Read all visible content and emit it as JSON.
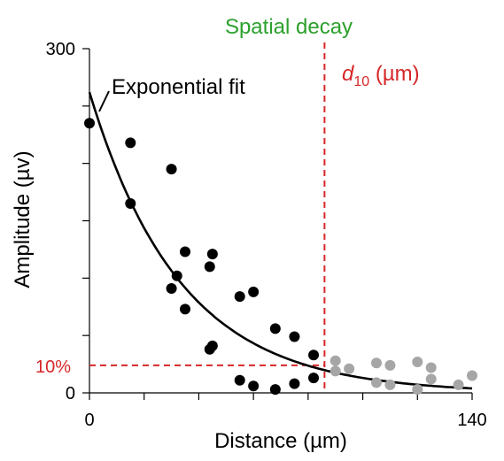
{
  "chart_data": {
    "type": "scatter",
    "title": "Spatial decay",
    "xlabel": "Distance (µm)",
    "ylabel": "Amplitude (µv)",
    "xlim": [
      0,
      140
    ],
    "ylim": [
      0,
      300
    ],
    "x_ticks": [
      0,
      20,
      40,
      60,
      80,
      100,
      120,
      140
    ],
    "x_tick_labels": [
      "0",
      "",
      "",
      "",
      "",
      "",
      "",
      "140"
    ],
    "y_ticks": [
      0,
      50,
      100,
      150,
      200,
      250,
      300
    ],
    "y_tick_labels": [
      "0",
      "",
      "",
      "",
      "",
      "",
      "300"
    ],
    "grid": false,
    "colors": {
      "title": "#2ca02c",
      "threshold": "#d62728",
      "fit": "#000000",
      "points_before": "#000000",
      "points_after": "#a6a6a6"
    },
    "fit": {
      "label": "Exponential fit",
      "model": "exponential",
      "amplitude0": 262,
      "length_constant": 33.3
    },
    "threshold": {
      "label": "10%",
      "value": 24,
      "d10_symbol": "d",
      "d10_subscript": "10",
      "d10_unit": " (µm)",
      "d10_x": 86
    },
    "series": [
      {
        "points": [
          [
            0,
            235
          ],
          [
            15,
            218
          ],
          [
            15,
            165
          ],
          [
            30,
            195
          ],
          [
            30,
            91
          ],
          [
            32,
            102
          ],
          [
            35,
            73
          ],
          [
            35,
            123
          ],
          [
            44,
            110
          ],
          [
            45,
            121
          ],
          [
            44,
            38
          ],
          [
            45,
            41
          ],
          [
            55,
            84
          ],
          [
            60,
            88
          ],
          [
            55,
            11
          ],
          [
            60,
            6
          ],
          [
            68,
            3
          ],
          [
            68,
            56
          ],
          [
            75,
            49
          ],
          [
            75,
            8
          ],
          [
            82,
            33
          ],
          [
            82,
            13
          ]
        ]
      },
      {
        "points": [
          [
            90,
            28
          ],
          [
            90,
            19
          ],
          [
            95,
            21
          ],
          [
            105,
            26
          ],
          [
            110,
            24
          ],
          [
            105,
            9
          ],
          [
            110,
            7
          ],
          [
            120,
            27
          ],
          [
            125,
            22
          ],
          [
            120,
            3
          ],
          [
            125,
            12
          ],
          [
            135,
            7
          ],
          [
            140,
            15
          ]
        ]
      }
    ]
  }
}
